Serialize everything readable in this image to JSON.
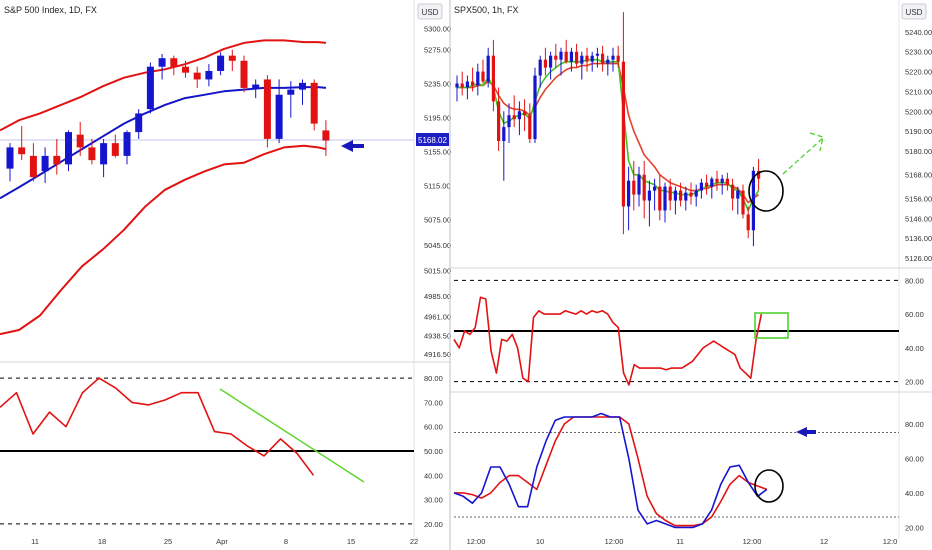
{
  "colors": {
    "bull": "#1515d0",
    "bear": "#e31212",
    "band_outer": "#e31212",
    "band_mid": "#1515c8",
    "rsi": "#e31212",
    "ema_fast": "#3ec41f",
    "ema_slow": "#e3422b",
    "stoch_k": "#1515d0",
    "stoch_d": "#e31212",
    "annot_green": "#4cd22b",
    "arrow_blue": "#1818b8",
    "grid_line": "#dadde3",
    "axis_text": "#333333"
  },
  "chart_data": [
    {
      "id": "daily-price",
      "type": "candlestick",
      "title": "S&P 500 Index, 1D, FX",
      "currency": "USD",
      "x_ticks": [
        "11",
        "18",
        "25",
        "Apr",
        "8",
        "15",
        "22"
      ],
      "y_ticks": [
        5300,
        5275,
        5235,
        5195,
        5155,
        5115,
        5075,
        5045,
        5015,
        4985,
        4961,
        4938.5,
        4916.5
      ],
      "ylim": [
        4912,
        5310
      ],
      "last_price": "5168.02",
      "candles": [
        {
          "o": 5135,
          "h": 5165,
          "l": 5120,
          "c": 5160
        },
        {
          "o": 5160,
          "h": 5185,
          "l": 5145,
          "c": 5152
        },
        {
          "o": 5150,
          "h": 5165,
          "l": 5120,
          "c": 5125
        },
        {
          "o": 5132,
          "h": 5160,
          "l": 5118,
          "c": 5150
        },
        {
          "o": 5150,
          "h": 5170,
          "l": 5128,
          "c": 5140
        },
        {
          "o": 5140,
          "h": 5180,
          "l": 5132,
          "c": 5178
        },
        {
          "o": 5175,
          "h": 5190,
          "l": 5150,
          "c": 5160
        },
        {
          "o": 5160,
          "h": 5170,
          "l": 5140,
          "c": 5145
        },
        {
          "o": 5140,
          "h": 5170,
          "l": 5125,
          "c": 5165
        },
        {
          "o": 5165,
          "h": 5175,
          "l": 5148,
          "c": 5150
        },
        {
          "o": 5150,
          "h": 5180,
          "l": 5140,
          "c": 5178
        },
        {
          "o": 5178,
          "h": 5205,
          "l": 5170,
          "c": 5200
        },
        {
          "o": 5205,
          "h": 5260,
          "l": 5200,
          "c": 5255
        },
        {
          "o": 5255,
          "h": 5270,
          "l": 5240,
          "c": 5265
        },
        {
          "o": 5265,
          "h": 5268,
          "l": 5245,
          "c": 5255
        },
        {
          "o": 5255,
          "h": 5262,
          "l": 5242,
          "c": 5248
        },
        {
          "o": 5248,
          "h": 5255,
          "l": 5230,
          "c": 5240
        },
        {
          "o": 5240,
          "h": 5258,
          "l": 5232,
          "c": 5250
        },
        {
          "o": 5250,
          "h": 5272,
          "l": 5245,
          "c": 5268
        },
        {
          "o": 5268,
          "h": 5275,
          "l": 5250,
          "c": 5262
        },
        {
          "o": 5262,
          "h": 5268,
          "l": 5225,
          "c": 5230
        },
        {
          "o": 5230,
          "h": 5240,
          "l": 5218,
          "c": 5234
        },
        {
          "o": 5240,
          "h": 5245,
          "l": 5160,
          "c": 5170
        },
        {
          "o": 5170,
          "h": 5240,
          "l": 5165,
          "c": 5222
        },
        {
          "o": 5222,
          "h": 5238,
          "l": 5195,
          "c": 5228
        },
        {
          "o": 5228,
          "h": 5240,
          "l": 5210,
          "c": 5236
        },
        {
          "o": 5236,
          "h": 5240,
          "l": 5180,
          "c": 5188
        },
        {
          "o": 5180,
          "h": 5192,
          "l": 5150,
          "c": 5168
        }
      ],
      "upper_band": [
        5180,
        5192,
        5200,
        5210,
        5220,
        5232,
        5242,
        5248,
        5252,
        5258,
        5266,
        5276,
        5283,
        5286,
        5286,
        5284,
        5284,
        5283
      ],
      "middle_band": [
        5100,
        5113,
        5128,
        5143,
        5158,
        5173,
        5188,
        5200,
        5210,
        5218,
        5222,
        5226,
        5228,
        5230,
        5230,
        5231,
        5231,
        5230
      ],
      "lower_band": [
        4940,
        4945,
        4962,
        4992,
        5020,
        5040,
        5063,
        5090,
        5110,
        5122,
        5132,
        5140,
        5142,
        5152,
        5160,
        5162,
        5160,
        5158
      ],
      "band_x": [
        0,
        19,
        40,
        61,
        82,
        103,
        124,
        145,
        165,
        185,
        205,
        224,
        244,
        264,
        284,
        304,
        318,
        326
      ]
    },
    {
      "id": "daily-rsi",
      "type": "line",
      "ylim": [
        15,
        85
      ],
      "y_ticks": [
        80,
        70,
        60,
        50,
        40,
        30,
        20
      ],
      "levels": [
        {
          "value": 80,
          "style": "dashed"
        },
        {
          "value": 50,
          "style": "solid"
        },
        {
          "value": 20,
          "style": "dashed"
        }
      ],
      "series": [
        {
          "values": [
            68,
            74,
            57,
            66,
            60,
            74,
            80,
            76,
            70,
            69,
            71,
            74,
            74,
            58,
            57,
            52,
            48,
            55,
            49,
            40
          ]
        },
        {
          "values": [
            74,
            34
          ]
        }
      ]
    },
    {
      "id": "hourly-price",
      "type": "candlestick",
      "title": "SPX500, 1h, FX",
      "currency": "USD",
      "y_ticks": [
        5240,
        5230,
        5220,
        5210,
        5200,
        5190,
        5180,
        5168,
        5156,
        5146,
        5136,
        5126
      ],
      "ylim": [
        5122,
        5246
      ],
      "candles": [
        {
          "o": 5212,
          "h": 5218,
          "l": 5205,
          "c": 5214
        },
        {
          "o": 5214,
          "h": 5220,
          "l": 5208,
          "c": 5212
        },
        {
          "o": 5212,
          "h": 5218,
          "l": 5206,
          "c": 5215
        },
        {
          "o": 5215,
          "h": 5222,
          "l": 5210,
          "c": 5213
        },
        {
          "o": 5213,
          "h": 5224,
          "l": 5208,
          "c": 5220
        },
        {
          "o": 5220,
          "h": 5226,
          "l": 5214,
          "c": 5215
        },
        {
          "o": 5215,
          "h": 5232,
          "l": 5212,
          "c": 5228
        },
        {
          "o": 5228,
          "h": 5236,
          "l": 5200,
          "c": 5205
        },
        {
          "o": 5205,
          "h": 5212,
          "l": 5180,
          "c": 5185
        },
        {
          "o": 5185,
          "h": 5200,
          "l": 5165,
          "c": 5192
        },
        {
          "o": 5192,
          "h": 5204,
          "l": 5184,
          "c": 5198
        },
        {
          "o": 5198,
          "h": 5208,
          "l": 5192,
          "c": 5196
        },
        {
          "o": 5196,
          "h": 5205,
          "l": 5188,
          "c": 5200
        },
        {
          "o": 5200,
          "h": 5206,
          "l": 5190,
          "c": 5198
        },
        {
          "o": 5198,
          "h": 5204,
          "l": 5184,
          "c": 5186
        },
        {
          "o": 5186,
          "h": 5222,
          "l": 5184,
          "c": 5218
        },
        {
          "o": 5218,
          "h": 5228,
          "l": 5212,
          "c": 5226
        },
        {
          "o": 5226,
          "h": 5232,
          "l": 5218,
          "c": 5222
        },
        {
          "o": 5222,
          "h": 5230,
          "l": 5216,
          "c": 5228
        },
        {
          "o": 5228,
          "h": 5234,
          "l": 5222,
          "c": 5226
        },
        {
          "o": 5226,
          "h": 5232,
          "l": 5218,
          "c": 5230
        },
        {
          "o": 5230,
          "h": 5236,
          "l": 5224,
          "c": 5225
        },
        {
          "o": 5225,
          "h": 5232,
          "l": 5220,
          "c": 5230
        },
        {
          "o": 5230,
          "h": 5234,
          "l": 5222,
          "c": 5224
        },
        {
          "o": 5224,
          "h": 5230,
          "l": 5216,
          "c": 5228
        },
        {
          "o": 5228,
          "h": 5232,
          "l": 5220,
          "c": 5225
        },
        {
          "o": 5225,
          "h": 5230,
          "l": 5220,
          "c": 5228
        },
        {
          "o": 5228,
          "h": 5232,
          "l": 5222,
          "c": 5229
        },
        {
          "o": 5229,
          "h": 5233,
          "l": 5220,
          "c": 5224
        },
        {
          "o": 5224,
          "h": 5228,
          "l": 5218,
          "c": 5226
        },
        {
          "o": 5226,
          "h": 5232,
          "l": 5220,
          "c": 5228
        },
        {
          "o": 5228,
          "h": 5233,
          "l": 5222,
          "c": 5225
        },
        {
          "o": 5225,
          "h": 5250,
          "l": 5138,
          "c": 5152
        },
        {
          "o": 5152,
          "h": 5172,
          "l": 5140,
          "c": 5165
        },
        {
          "o": 5165,
          "h": 5175,
          "l": 5150,
          "c": 5158
        },
        {
          "o": 5158,
          "h": 5172,
          "l": 5152,
          "c": 5168
        },
        {
          "o": 5168,
          "h": 5175,
          "l": 5146,
          "c": 5155
        },
        {
          "o": 5155,
          "h": 5165,
          "l": 5142,
          "c": 5160
        },
        {
          "o": 5160,
          "h": 5166,
          "l": 5150,
          "c": 5162
        },
        {
          "o": 5162,
          "h": 5168,
          "l": 5145,
          "c": 5150
        },
        {
          "o": 5150,
          "h": 5164,
          "l": 5144,
          "c": 5162
        },
        {
          "o": 5162,
          "h": 5166,
          "l": 5150,
          "c": 5155
        },
        {
          "o": 5155,
          "h": 5162,
          "l": 5148,
          "c": 5160
        },
        {
          "o": 5160,
          "h": 5164,
          "l": 5152,
          "c": 5155
        },
        {
          "o": 5155,
          "h": 5162,
          "l": 5150,
          "c": 5159
        },
        {
          "o": 5159,
          "h": 5164,
          "l": 5153,
          "c": 5157
        },
        {
          "o": 5157,
          "h": 5163,
          "l": 5152,
          "c": 5160
        },
        {
          "o": 5160,
          "h": 5166,
          "l": 5156,
          "c": 5164
        },
        {
          "o": 5164,
          "h": 5168,
          "l": 5158,
          "c": 5162
        },
        {
          "o": 5162,
          "h": 5167,
          "l": 5156,
          "c": 5166
        },
        {
          "o": 5166,
          "h": 5170,
          "l": 5160,
          "c": 5164
        },
        {
          "o": 5164,
          "h": 5168,
          "l": 5158,
          "c": 5166
        },
        {
          "o": 5166,
          "h": 5169,
          "l": 5160,
          "c": 5163
        },
        {
          "o": 5163,
          "h": 5166,
          "l": 5150,
          "c": 5156
        },
        {
          "o": 5156,
          "h": 5162,
          "l": 5148,
          "c": 5160
        },
        {
          "o": 5160,
          "h": 5163,
          "l": 5146,
          "c": 5148
        },
        {
          "o": 5148,
          "h": 5152,
          "l": 5136,
          "c": 5140
        },
        {
          "o": 5140,
          "h": 5172,
          "l": 5132,
          "c": 5170
        },
        {
          "o": 5170,
          "h": 5176,
          "l": 5160,
          "c": 5166
        }
      ],
      "ema_fast": [
        5212,
        5212,
        5212,
        5213,
        5214,
        5213,
        5217,
        5212,
        5200,
        5194,
        5195,
        5197,
        5198,
        5199,
        5196,
        5205,
        5213,
        5217,
        5220,
        5222,
        5224,
        5225,
        5225,
        5225,
        5225,
        5226,
        5226,
        5226,
        5225,
        5225,
        5225,
        5225,
        5200,
        5175,
        5168,
        5168,
        5165,
        5164,
        5163,
        5160,
        5160,
        5159,
        5159,
        5158,
        5158,
        5158,
        5159,
        5161,
        5162,
        5163,
        5164,
        5164,
        5164,
        5161,
        5160,
        5156,
        5150,
        5156,
        5160
      ],
      "ema_slow": [
        5212,
        5212,
        5212,
        5212,
        5213,
        5213,
        5215,
        5213,
        5208,
        5204,
        5202,
        5201,
        5201,
        5200,
        5198,
        5202,
        5207,
        5211,
        5214,
        5217,
        5219,
        5221,
        5222,
        5222,
        5223,
        5223,
        5224,
        5224,
        5224,
        5224,
        5224,
        5224,
        5212,
        5198,
        5190,
        5184,
        5178,
        5175,
        5172,
        5168,
        5166,
        5164,
        5163,
        5162,
        5161,
        5160,
        5160,
        5161,
        5161,
        5162,
        5163,
        5163,
        5163,
        5162,
        5161,
        5158,
        5154,
        5156,
        5158
      ],
      "x_ticks": [
        "12:00",
        "10",
        "12:00",
        "11",
        "12:00",
        "12",
        "12:0"
      ]
    },
    {
      "id": "hourly-rsi",
      "type": "line",
      "ylim": [
        15,
        85
      ],
      "y_ticks": [
        80,
        60,
        40,
        20
      ],
      "levels": [
        {
          "value": 80,
          "style": "dashed"
        },
        {
          "value": 50,
          "style": "solid"
        },
        {
          "value": 20,
          "style": "dashed"
        }
      ],
      "series": [
        {
          "values": [
            45,
            40,
            50,
            48,
            52,
            70,
            69,
            38,
            25,
            45,
            44,
            48,
            40,
            22,
            20,
            58,
            62,
            60,
            60,
            60,
            60,
            62,
            61,
            60,
            62,
            60,
            62,
            61,
            62,
            60,
            55,
            52,
            25,
            18,
            30,
            28,
            28,
            28,
            28,
            28,
            27,
            28,
            28,
            28,
            30,
            32,
            36,
            40,
            42,
            44,
            42,
            40,
            38,
            36,
            28,
            25,
            22,
            45,
            60
          ]
        }
      ]
    },
    {
      "id": "hourly-stochastic",
      "type": "line",
      "ylim": [
        15,
        95
      ],
      "y_ticks": [
        80,
        60,
        40,
        20
      ],
      "levels": [
        {
          "value": 75,
          "style": "dotted"
        },
        {
          "value": 26,
          "style": "dotted"
        }
      ],
      "series": [
        {
          "values": [
            40,
            38,
            34,
            40,
            55,
            55,
            45,
            32,
            32,
            55,
            70,
            82,
            84,
            84,
            84,
            84,
            86,
            84,
            84,
            60,
            30,
            22,
            24,
            22,
            20,
            20,
            20,
            22,
            30,
            45,
            55,
            56,
            46,
            38,
            42
          ]
        },
        {
          "values": [
            40,
            40,
            39,
            37,
            40,
            46,
            50,
            50,
            46,
            42,
            56,
            70,
            80,
            84,
            84,
            84,
            84,
            84,
            84,
            80,
            60,
            38,
            28,
            24,
            21,
            21,
            21,
            22,
            26,
            35,
            45,
            50,
            46,
            44,
            42
          ]
        }
      ]
    }
  ]
}
